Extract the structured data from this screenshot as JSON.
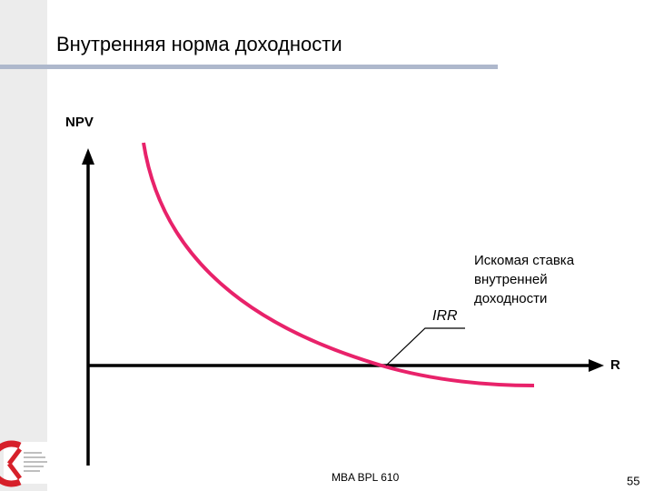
{
  "slide": {
    "title": "Внутренняя норма доходности",
    "diagram": {
      "y_axis_label": "NPV",
      "x_axis_label": "R",
      "point_label": "IRR",
      "annotation": [
        "Искомая ставка",
        "внутренней",
        "доходности"
      ]
    },
    "footer": "MBA BPL 610",
    "page_number": "55"
  }
}
